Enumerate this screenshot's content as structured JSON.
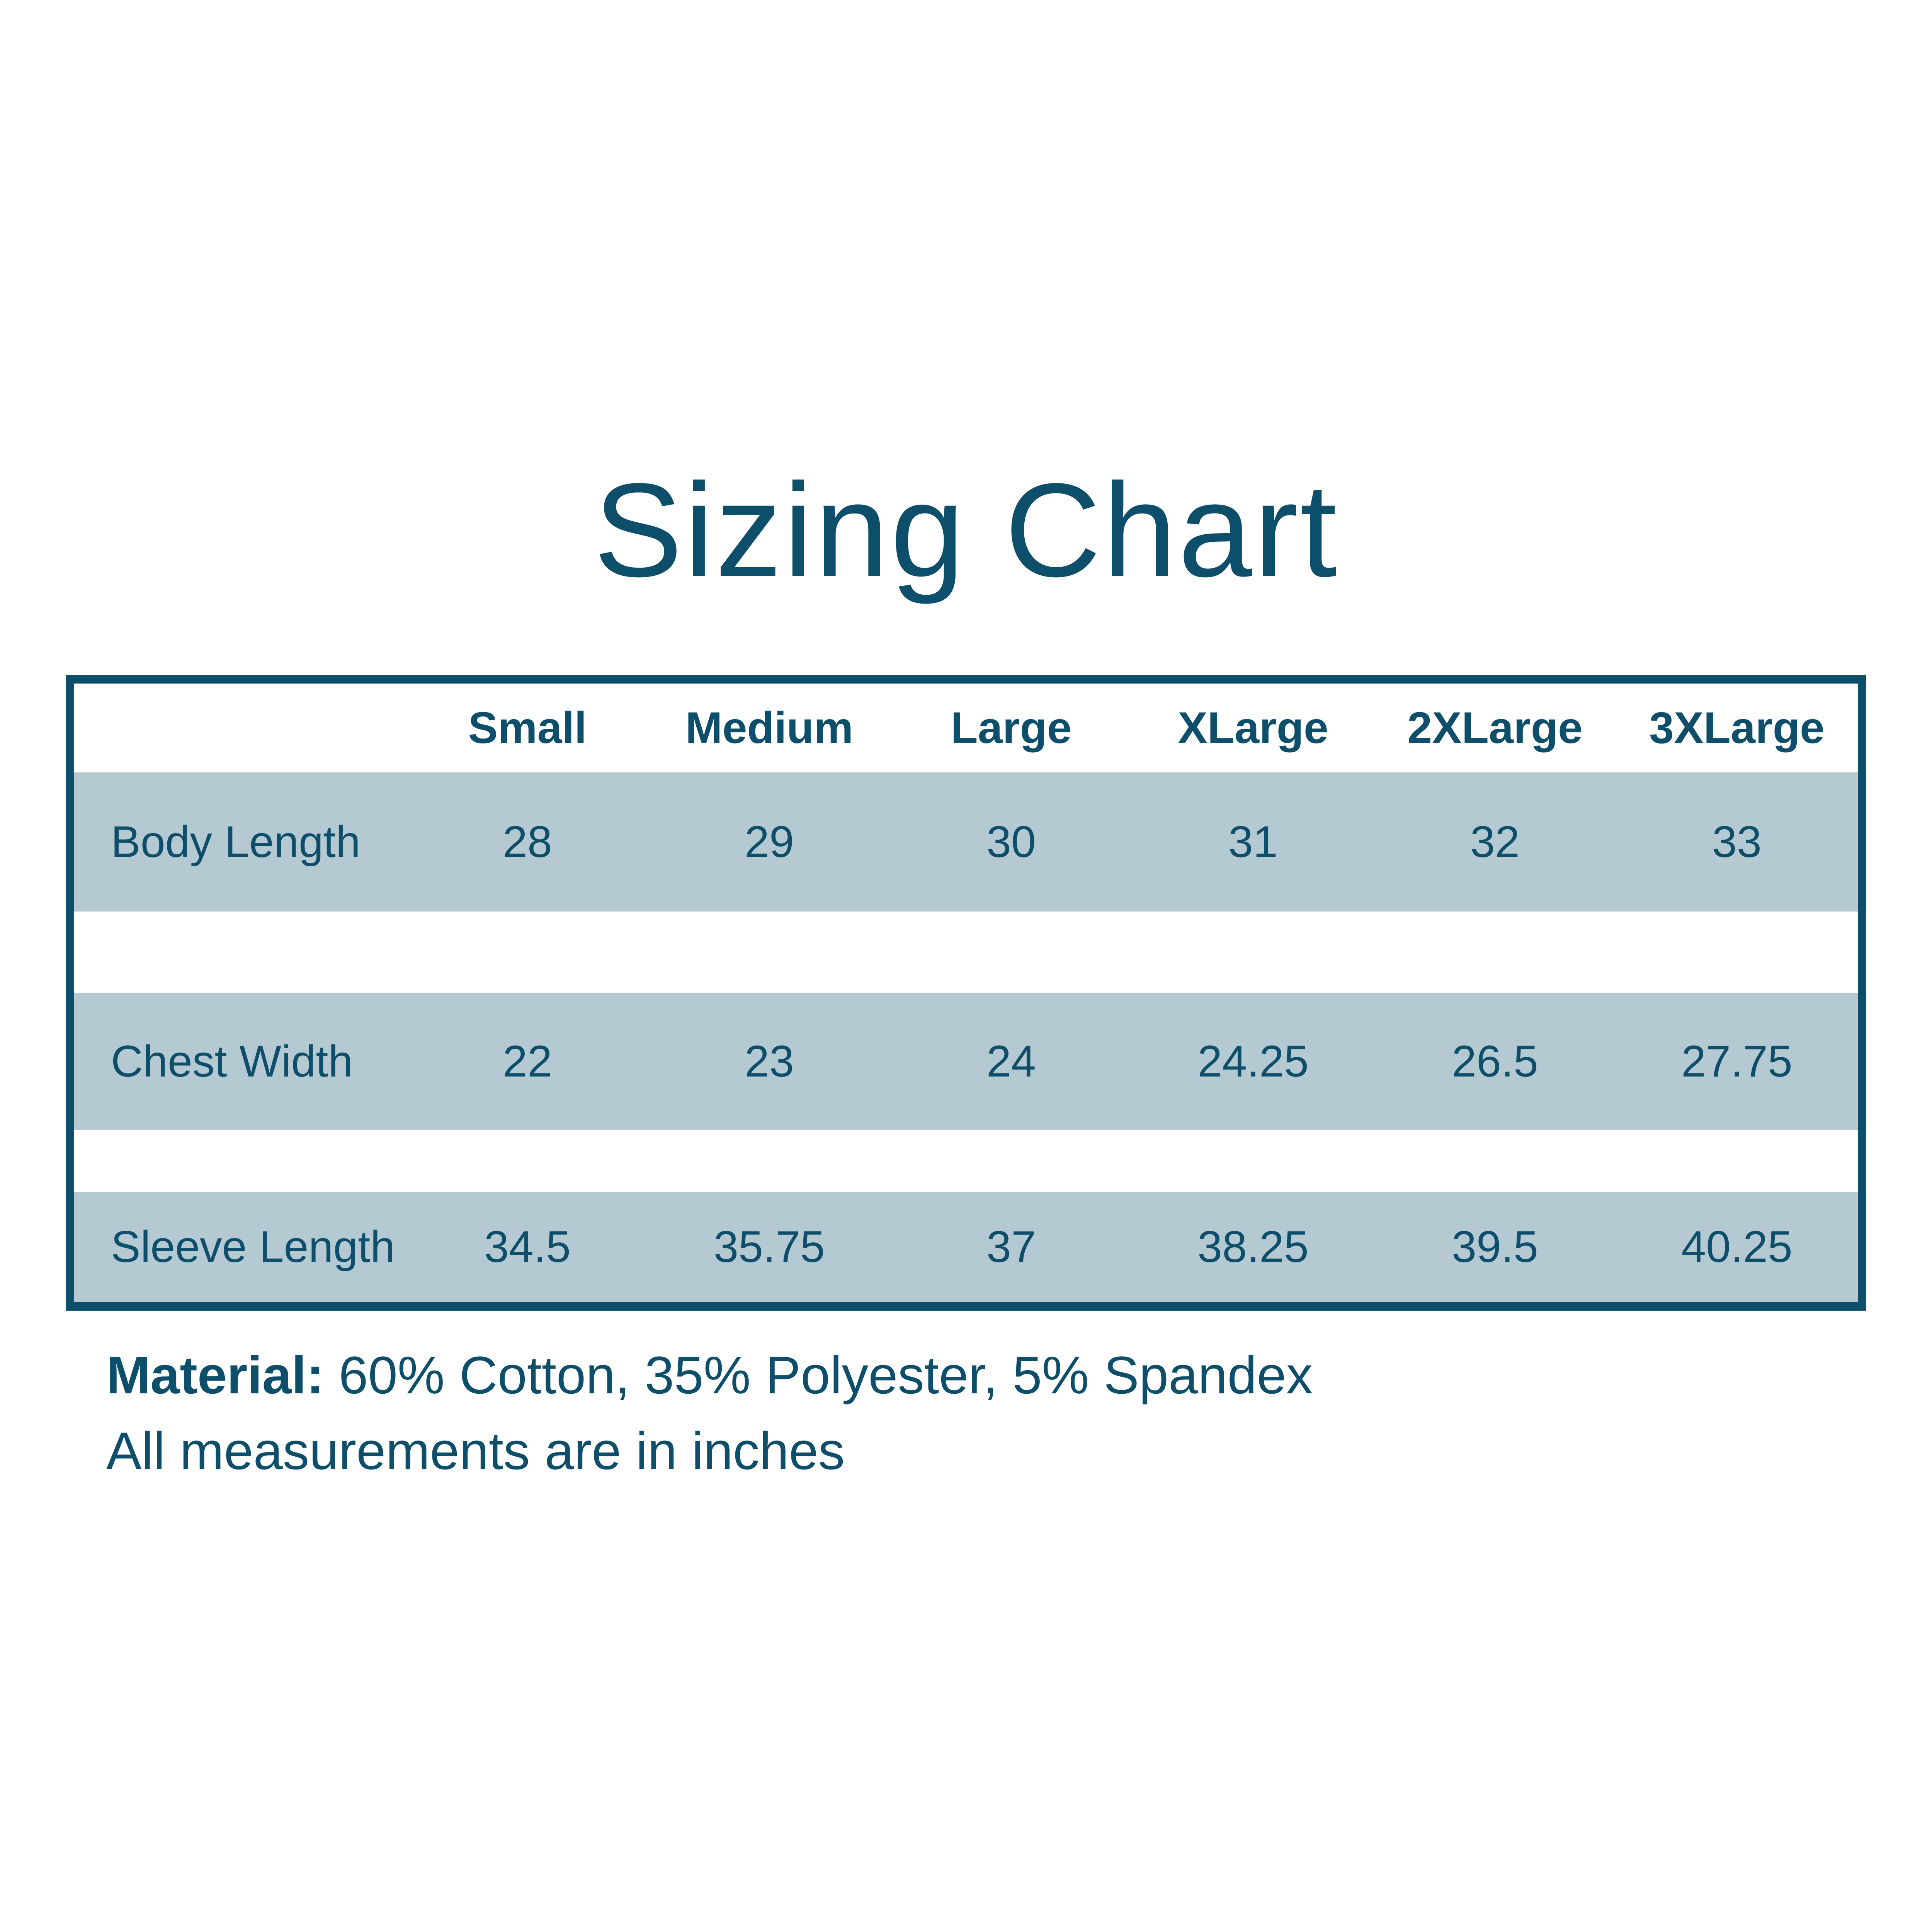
{
  "title": {
    "text": "Sizing Chart",
    "color": "#0d4e6b"
  },
  "table": {
    "border_color": "#0d4e6b",
    "band_color": "#b4c9d2",
    "text_color": "#0d4e6b",
    "columns": [
      "Small",
      "Medium",
      "Large",
      "XLarge",
      "2XLarge",
      "3XLarge"
    ],
    "rows": [
      {
        "label": "Body Length",
        "values": [
          "28",
          "29",
          "30",
          "31",
          "32",
          "33"
        ]
      },
      {
        "label": "Chest Width",
        "values": [
          "22",
          "23",
          "24",
          "24.25",
          "26.5",
          "27.75"
        ]
      },
      {
        "label": "Sleeve Length",
        "values": [
          "34.5",
          "35.75",
          "37",
          "38.25",
          "39.5",
          "40.25"
        ]
      }
    ]
  },
  "footer": {
    "material_label": "Material:",
    "material_value": " 60% Cotton, 35% Polyester, 5% Spandex",
    "note": "All measurements are in inches"
  },
  "chart_data": {
    "type": "table",
    "title": "Sizing Chart",
    "categories": [
      "Small",
      "Medium",
      "Large",
      "XLarge",
      "2XLarge",
      "3XLarge"
    ],
    "series": [
      {
        "name": "Body Length",
        "values": [
          28,
          29,
          30,
          31,
          32,
          33
        ]
      },
      {
        "name": "Chest Width",
        "values": [
          22,
          23,
          24,
          24.25,
          26.5,
          27.75
        ]
      },
      {
        "name": "Sleeve Length",
        "values": [
          34.5,
          35.75,
          37,
          38.25,
          39.5,
          40.25
        ]
      }
    ],
    "units": "inches",
    "notes": [
      "Material: 60% Cotton, 35% Polyester, 5% Spandex",
      "All measurements are in inches"
    ],
    "layout": {
      "banded_rows": true,
      "band_color": "#b4c9d2",
      "border_color": "#0d4e6b",
      "background": "#ffffff"
    }
  }
}
